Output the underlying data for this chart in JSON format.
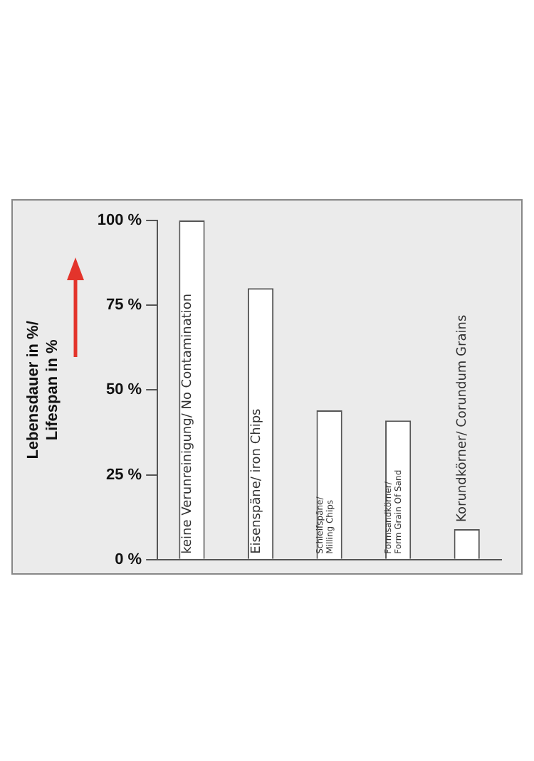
{
  "chart_data": {
    "type": "bar",
    "ylabel": "Lebensdauer in %/ Lifespan in %",
    "categories": [
      "keine Verunreinigung/ No Contamination",
      "Eisenspäne/ iron Chips",
      "Schleifspäne/ Milling Chips",
      "Formsandkörner/ Form Grain Of Sand",
      "Korundkörner/ Corundum Grains"
    ],
    "values": [
      100,
      80,
      44,
      41,
      9
    ],
    "color": "#ffffff",
    "ylim": [
      0,
      100
    ],
    "yticks": [
      {
        "value": 0,
        "label": "0 %"
      },
      {
        "value": 25,
        "label": "25 %"
      },
      {
        "value": 50,
        "label": "50 %"
      },
      {
        "value": 75,
        "label": "75 %"
      },
      {
        "value": 100,
        "label": "100 %"
      }
    ],
    "grid": false,
    "legend": false
  }
}
